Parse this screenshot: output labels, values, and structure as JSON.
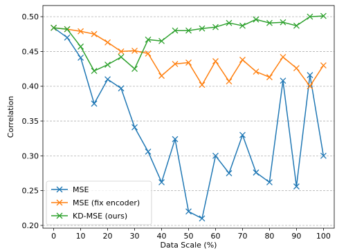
{
  "chart_data": {
    "type": "line",
    "title": "",
    "xlabel": "Data Scale (%)",
    "ylabel": "Correlation",
    "xlim": [
      -4,
      104
    ],
    "ylim": [
      0.196,
      0.516
    ],
    "xticks": [
      0,
      10,
      20,
      30,
      40,
      50,
      60,
      70,
      80,
      90,
      100
    ],
    "xtick_labels": [
      "0",
      "10",
      "20",
      "30",
      "40",
      "50",
      "60",
      "70",
      "80",
      "90",
      "100"
    ],
    "yticks": [
      0.2,
      0.25,
      0.3,
      0.35,
      0.4,
      0.45,
      0.5
    ],
    "ytick_labels": [
      "0.20",
      "0.25",
      "0.30",
      "0.35",
      "0.40",
      "0.45",
      "0.50"
    ],
    "grid": "horizontal dashed",
    "legend_position": "lower-left",
    "marker": "x",
    "x": [
      0,
      5,
      10,
      15,
      20,
      25,
      30,
      35,
      40,
      45,
      50,
      55,
      60,
      65,
      70,
      75,
      80,
      85,
      90,
      95,
      100
    ],
    "series": [
      {
        "name": "MSE",
        "color": "#1f77b4",
        "values": [
          0.484,
          0.47,
          0.441,
          0.375,
          0.41,
          0.397,
          0.341,
          0.306,
          0.262,
          0.324,
          0.22,
          0.21,
          0.3,
          0.275,
          0.33,
          0.276,
          0.262,
          0.408,
          0.256,
          0.416,
          0.3
        ]
      },
      {
        "name": "MSE (fix encoder)",
        "color": "#ff7f0e",
        "values": [
          0.484,
          0.482,
          0.479,
          0.475,
          0.463,
          0.45,
          0.451,
          0.447,
          0.415,
          0.432,
          0.434,
          0.402,
          0.436,
          0.407,
          0.438,
          0.421,
          0.413,
          0.442,
          0.426,
          0.4,
          0.43
        ]
      },
      {
        "name": "KD-MSE (ours)",
        "color": "#2ca02c",
        "values": [
          0.484,
          0.482,
          0.457,
          0.422,
          0.431,
          0.442,
          0.425,
          0.467,
          0.465,
          0.48,
          0.48,
          0.483,
          0.485,
          0.491,
          0.487,
          0.496,
          0.491,
          0.492,
          0.487,
          0.5,
          0.501
        ]
      }
    ]
  }
}
